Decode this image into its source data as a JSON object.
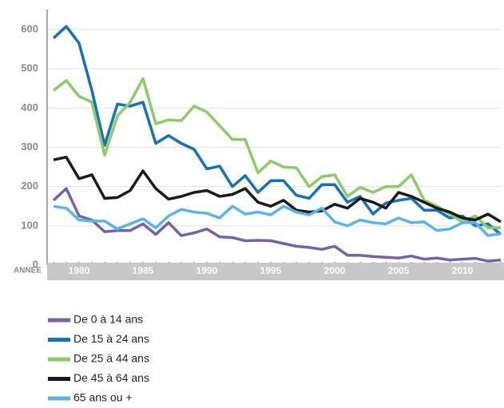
{
  "chart_data": {
    "type": "line",
    "x": [
      1978,
      1979,
      1980,
      1981,
      1982,
      1983,
      1984,
      1985,
      1986,
      1987,
      1988,
      1989,
      1990,
      1991,
      1992,
      1993,
      1994,
      1995,
      1996,
      1997,
      1998,
      1999,
      2000,
      2001,
      2002,
      2003,
      2004,
      2005,
      2006,
      2007,
      2008,
      2009,
      2010,
      2011,
      2012,
      2013
    ],
    "xlabel": "ANNÉE",
    "series": [
      {
        "name": "De 0 à 14 ans",
        "color": "#7463a8",
        "values": [
          165,
          195,
          125,
          115,
          85,
          88,
          88,
          105,
          78,
          108,
          75,
          82,
          92,
          72,
          70,
          62,
          63,
          62,
          55,
          48,
          45,
          40,
          48,
          25,
          25,
          22,
          20,
          18,
          23,
          15,
          18,
          13,
          15,
          17,
          10,
          13
        ]
      },
      {
        "name": "De 15 à 24 ans",
        "color": "#1571b8",
        "values": [
          578,
          608,
          565,
          445,
          305,
          410,
          405,
          415,
          310,
          330,
          310,
          295,
          245,
          252,
          200,
          228,
          185,
          215,
          215,
          178,
          170,
          205,
          205,
          160,
          175,
          130,
          158,
          165,
          170,
          140,
          140,
          120,
          125,
          100,
          105,
          78
        ]
      },
      {
        "name": "De 25 à 44 ans",
        "color": "#8dcb6a",
        "values": [
          445,
          470,
          430,
          415,
          280,
          380,
          415,
          475,
          360,
          370,
          368,
          405,
          390,
          355,
          320,
          320,
          235,
          265,
          250,
          248,
          200,
          225,
          230,
          175,
          198,
          185,
          200,
          200,
          230,
          165,
          150,
          130,
          110,
          125,
          95,
          95
        ]
      },
      {
        "name": "De 45 à 64 ans",
        "color": "#1a1a1a",
        "values": [
          268,
          275,
          220,
          230,
          170,
          172,
          190,
          240,
          195,
          168,
          175,
          185,
          190,
          175,
          180,
          195,
          160,
          150,
          165,
          140,
          135,
          138,
          155,
          145,
          170,
          160,
          145,
          185,
          175,
          160,
          145,
          135,
          120,
          115,
          130,
          110
        ]
      },
      {
        "name": "65 ans ou +",
        "color": "#5ab4e5",
        "values": [
          150,
          145,
          115,
          112,
          112,
          92,
          105,
          118,
          95,
          125,
          142,
          135,
          132,
          120,
          150,
          130,
          135,
          128,
          150,
          135,
          128,
          145,
          110,
          100,
          115,
          108,
          105,
          120,
          108,
          110,
          88,
          92,
          108,
          108,
          75,
          80
        ]
      }
    ],
    "xlim": [
      1977.5,
      2013
    ],
    "xticks": [
      1980,
      1985,
      1990,
      1995,
      2000,
      2005,
      2010
    ],
    "ylim": [
      0,
      600
    ],
    "yticks": [
      0,
      100,
      200,
      300,
      400,
      500,
      600
    ],
    "grid": true
  }
}
